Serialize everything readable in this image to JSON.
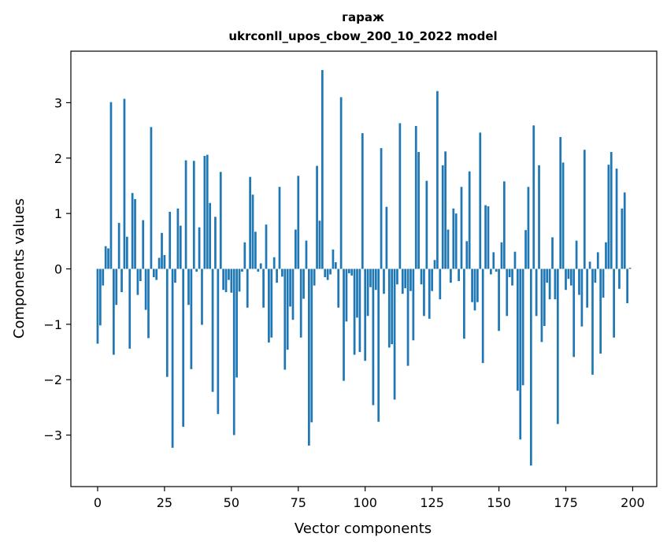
{
  "chart_data": {
    "type": "bar",
    "title": "гараж",
    "subtitle": "ukrconll_upos_cbow_200_10_2022 model",
    "xlabel": "Vector components",
    "ylabel": "Components values",
    "xlim": [
      -10,
      209
    ],
    "ylim": [
      -3.93,
      3.93
    ],
    "x_ticks": [
      0,
      25,
      50,
      75,
      100,
      125,
      150,
      175,
      200
    ],
    "y_ticks": [
      -3,
      -2,
      -1,
      0,
      1,
      2,
      3
    ],
    "x_tick_labels": [
      "0",
      "25",
      "50",
      "75",
      "100",
      "125",
      "150",
      "175",
      "200"
    ],
    "y_tick_labels": [
      "−3",
      "−2",
      "−1",
      "0",
      "1",
      "2",
      "3"
    ],
    "grid": false,
    "bar_color": "#1f77b4",
    "x": [
      0,
      1,
      2,
      3,
      4,
      5,
      6,
      7,
      8,
      9,
      10,
      11,
      12,
      13,
      14,
      15,
      16,
      17,
      18,
      19,
      20,
      21,
      22,
      23,
      24,
      25,
      26,
      27,
      28,
      29,
      30,
      31,
      32,
      33,
      34,
      35,
      36,
      37,
      38,
      39,
      40,
      41,
      42,
      43,
      44,
      45,
      46,
      47,
      48,
      49,
      50,
      51,
      52,
      53,
      54,
      55,
      56,
      57,
      58,
      59,
      60,
      61,
      62,
      63,
      64,
      65,
      66,
      67,
      68,
      69,
      70,
      71,
      72,
      73,
      74,
      75,
      76,
      77,
      78,
      79,
      80,
      81,
      82,
      83,
      84,
      85,
      86,
      87,
      88,
      89,
      90,
      91,
      92,
      93,
      94,
      95,
      96,
      97,
      98,
      99,
      100,
      101,
      102,
      103,
      104,
      105,
      106,
      107,
      108,
      109,
      110,
      111,
      112,
      113,
      114,
      115,
      116,
      117,
      118,
      119,
      120,
      121,
      122,
      123,
      124,
      125,
      126,
      127,
      128,
      129,
      130,
      131,
      132,
      133,
      134,
      135,
      136,
      137,
      138,
      139,
      140,
      141,
      142,
      143,
      144,
      145,
      146,
      147,
      148,
      149,
      150,
      151,
      152,
      153,
      154,
      155,
      156,
      157,
      158,
      159,
      160,
      161,
      162,
      163,
      164,
      165,
      166,
      167,
      168,
      169,
      170,
      171,
      172,
      173,
      174,
      175,
      176,
      177,
      178,
      179,
      180,
      181,
      182,
      183,
      184,
      185,
      186,
      187,
      188,
      189,
      190,
      191,
      192,
      193,
      194,
      195,
      196,
      197,
      198,
      199
    ],
    "values": [
      -1.35,
      -1.02,
      -0.3,
      0.41,
      0.37,
      3.01,
      -1.55,
      -0.65,
      0.83,
      -0.42,
      3.07,
      0.58,
      -1.44,
      1.37,
      1.26,
      -0.47,
      -0.22,
      0.88,
      -0.74,
      -1.25,
      2.56,
      -0.15,
      -0.2,
      0.2,
      0.65,
      0.25,
      -1.95,
      1.03,
      -3.23,
      -0.25,
      1.09,
      0.78,
      -2.85,
      1.96,
      -0.65,
      -1.81,
      1.95,
      -0.05,
      0.75,
      -1.01,
      2.04,
      2.06,
      1.19,
      -2.22,
      0.94,
      -2.62,
      1.75,
      -0.38,
      -0.42,
      -0.2,
      -0.43,
      -3.0,
      -1.96,
      -0.41,
      -0.05,
      0.48,
      -0.7,
      1.66,
      1.34,
      0.67,
      -0.05,
      0.1,
      -0.7,
      0.8,
      -1.33,
      -1.24,
      0.21,
      -0.25,
      1.48,
      -0.14,
      -1.82,
      -1.46,
      -0.68,
      -0.92,
      0.71,
      1.68,
      -1.24,
      -0.54,
      0.51,
      -3.19,
      -2.77,
      -0.3,
      1.86,
      0.87,
      3.59,
      -0.15,
      -0.2,
      -0.1,
      0.35,
      0.12,
      -0.7,
      3.1,
      -2.02,
      -0.95,
      -0.08,
      -0.12,
      -1.55,
      -0.88,
      -1.5,
      2.45,
      -1.66,
      -0.85,
      -0.33,
      -2.46,
      -0.38,
      -2.76,
      2.18,
      -0.45,
      1.12,
      -1.42,
      -1.36,
      -2.36,
      -0.28,
      2.63,
      -0.45,
      -0.35,
      -1.75,
      -0.4,
      -1.29,
      2.58,
      2.11,
      -0.28,
      -0.85,
      1.59,
      -0.9,
      -0.4,
      0.16,
      3.21,
      -0.55,
      1.87,
      2.12,
      0.71,
      -0.25,
      1.09,
      1.0,
      -0.22,
      1.48,
      -1.26,
      0.5,
      1.76,
      -0.6,
      -0.75,
      -0.6,
      2.46,
      -1.7,
      1.15,
      1.13,
      -0.1,
      0.3,
      -0.05,
      -1.12,
      0.48,
      1.58,
      -0.85,
      -0.15,
      -0.3,
      0.31,
      -2.2,
      -3.08,
      -2.1,
      0.7,
      1.48,
      -3.55,
      2.59,
      -0.85,
      1.87,
      -1.32,
      -1.03,
      -0.25,
      -0.55,
      0.57,
      -0.55,
      -2.8,
      2.38,
      1.92,
      -0.38,
      -0.18,
      -0.3,
      -1.59,
      0.51,
      -0.47,
      -1.04,
      2.15,
      -0.7,
      0.13,
      -1.91,
      -0.25,
      0.3,
      -1.53,
      -0.52,
      0.48,
      1.88,
      2.11,
      -1.24,
      1.81,
      -0.36,
      1.09,
      1.38,
      -0.62,
      0.02
    ]
  }
}
